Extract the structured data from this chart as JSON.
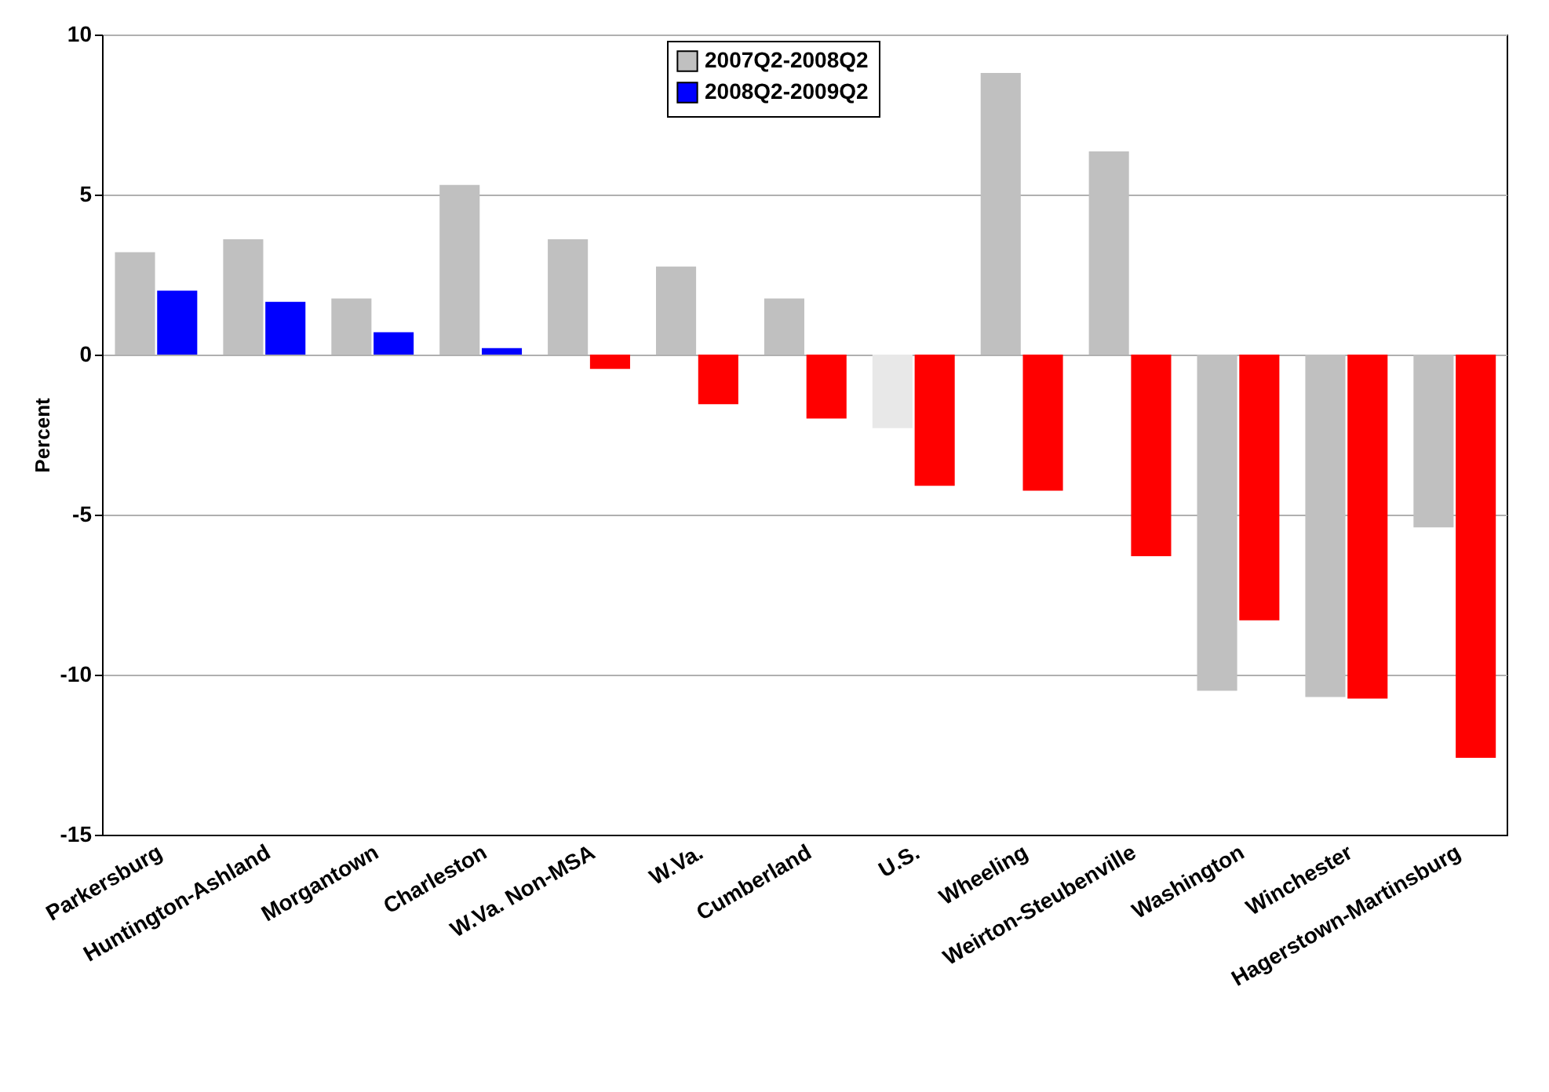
{
  "chart_data": {
    "type": "bar",
    "ylabel": "Percent",
    "categories": [
      "Parkersburg",
      "Huntington-Ashland",
      "Morgantown",
      "Charleston",
      "W.Va. Non-MSA",
      "W.Va.",
      "Cumberland",
      "U.S.",
      "Wheeling",
      "Weirton-Steubenville",
      "Washington",
      "Winchester",
      "Hagerstown-Martinsburg"
    ],
    "series": [
      {
        "name": "2007Q2-2008Q2",
        "color": "#c0c0c0",
        "colors": [
          "#c0c0c0",
          "#c0c0c0",
          "#c0c0c0",
          "#c0c0c0",
          "#c0c0c0",
          "#c0c0c0",
          "#c0c0c0",
          "#e8e8e8",
          "#c0c0c0",
          "#c0c0c0",
          "#c0c0c0",
          "#c0c0c0",
          "#c0c0c0"
        ],
        "values": [
          3.2,
          3.6,
          1.75,
          5.3,
          3.6,
          2.75,
          1.75,
          -2.3,
          8.8,
          6.35,
          -10.5,
          -10.7,
          -5.4
        ]
      },
      {
        "name": "2008Q2-2009Q2",
        "color": "#0000ff",
        "colors": [
          "#0000ff",
          "#0000ff",
          "#0000ff",
          "#0000ff",
          "#ff0000",
          "#ff0000",
          "#ff0000",
          "#ff0000",
          "#ff0000",
          "#ff0000",
          "#ff0000",
          "#ff0000",
          "#ff0000"
        ],
        "values": [
          2.0,
          1.65,
          0.7,
          0.2,
          -0.45,
          -1.55,
          -2.0,
          -4.1,
          -4.25,
          -6.3,
          -8.3,
          -10.75,
          -12.6
        ]
      }
    ],
    "ylim": [
      -15,
      10
    ],
    "yticks": [
      -15,
      -10,
      -5,
      0,
      5,
      10
    ],
    "grid": "y",
    "legend": "top"
  }
}
